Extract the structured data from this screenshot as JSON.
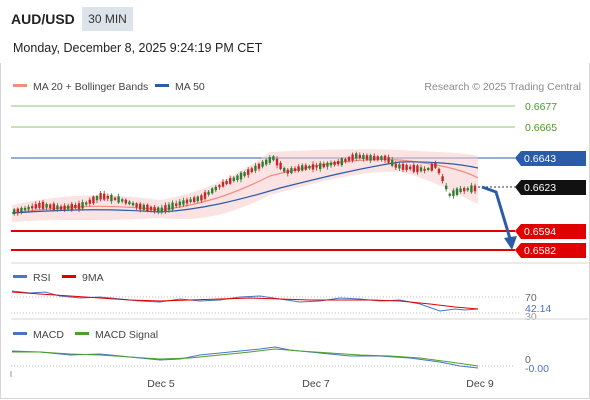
{
  "header": {
    "pair": "AUD/USD",
    "timeframe": "30 MIN",
    "datetime": "Monday, December 8, 2025 9:24:19 PM CET"
  },
  "legend": {
    "ma20": "MA 20 + Bollinger Bands",
    "ma50": "MA 50",
    "credit": "Research © 2025 Trading Central",
    "rsi": "RSI",
    "rsi_ma": "9MA",
    "macd": "MACD",
    "macd_signal": "MACD Signal"
  },
  "colors": {
    "ma20": "#f28b82",
    "ma50": "#2a5caa",
    "up": "#2e7d32",
    "down": "#c62828",
    "level_green": "#8dc56d",
    "level_blue": "#2a5caa",
    "level_red": "#e00000",
    "macd": "#4a73c9",
    "signal": "#4aa02c"
  },
  "price_levels": {
    "l1": "0.6677",
    "l2": "0.6665",
    "l3": "0.6643",
    "current": "0.6623",
    "l4": "0.6594",
    "l5": "0.6582"
  },
  "rsi": {
    "level_high": "70",
    "value": "42.14",
    "level_low": "30"
  },
  "macd_panel": {
    "zero": "0",
    "value": "-0.00"
  },
  "x_axis": {
    "t1": "Dec 5",
    "t2": "Dec 7",
    "t3": "Dec 9"
  }
}
